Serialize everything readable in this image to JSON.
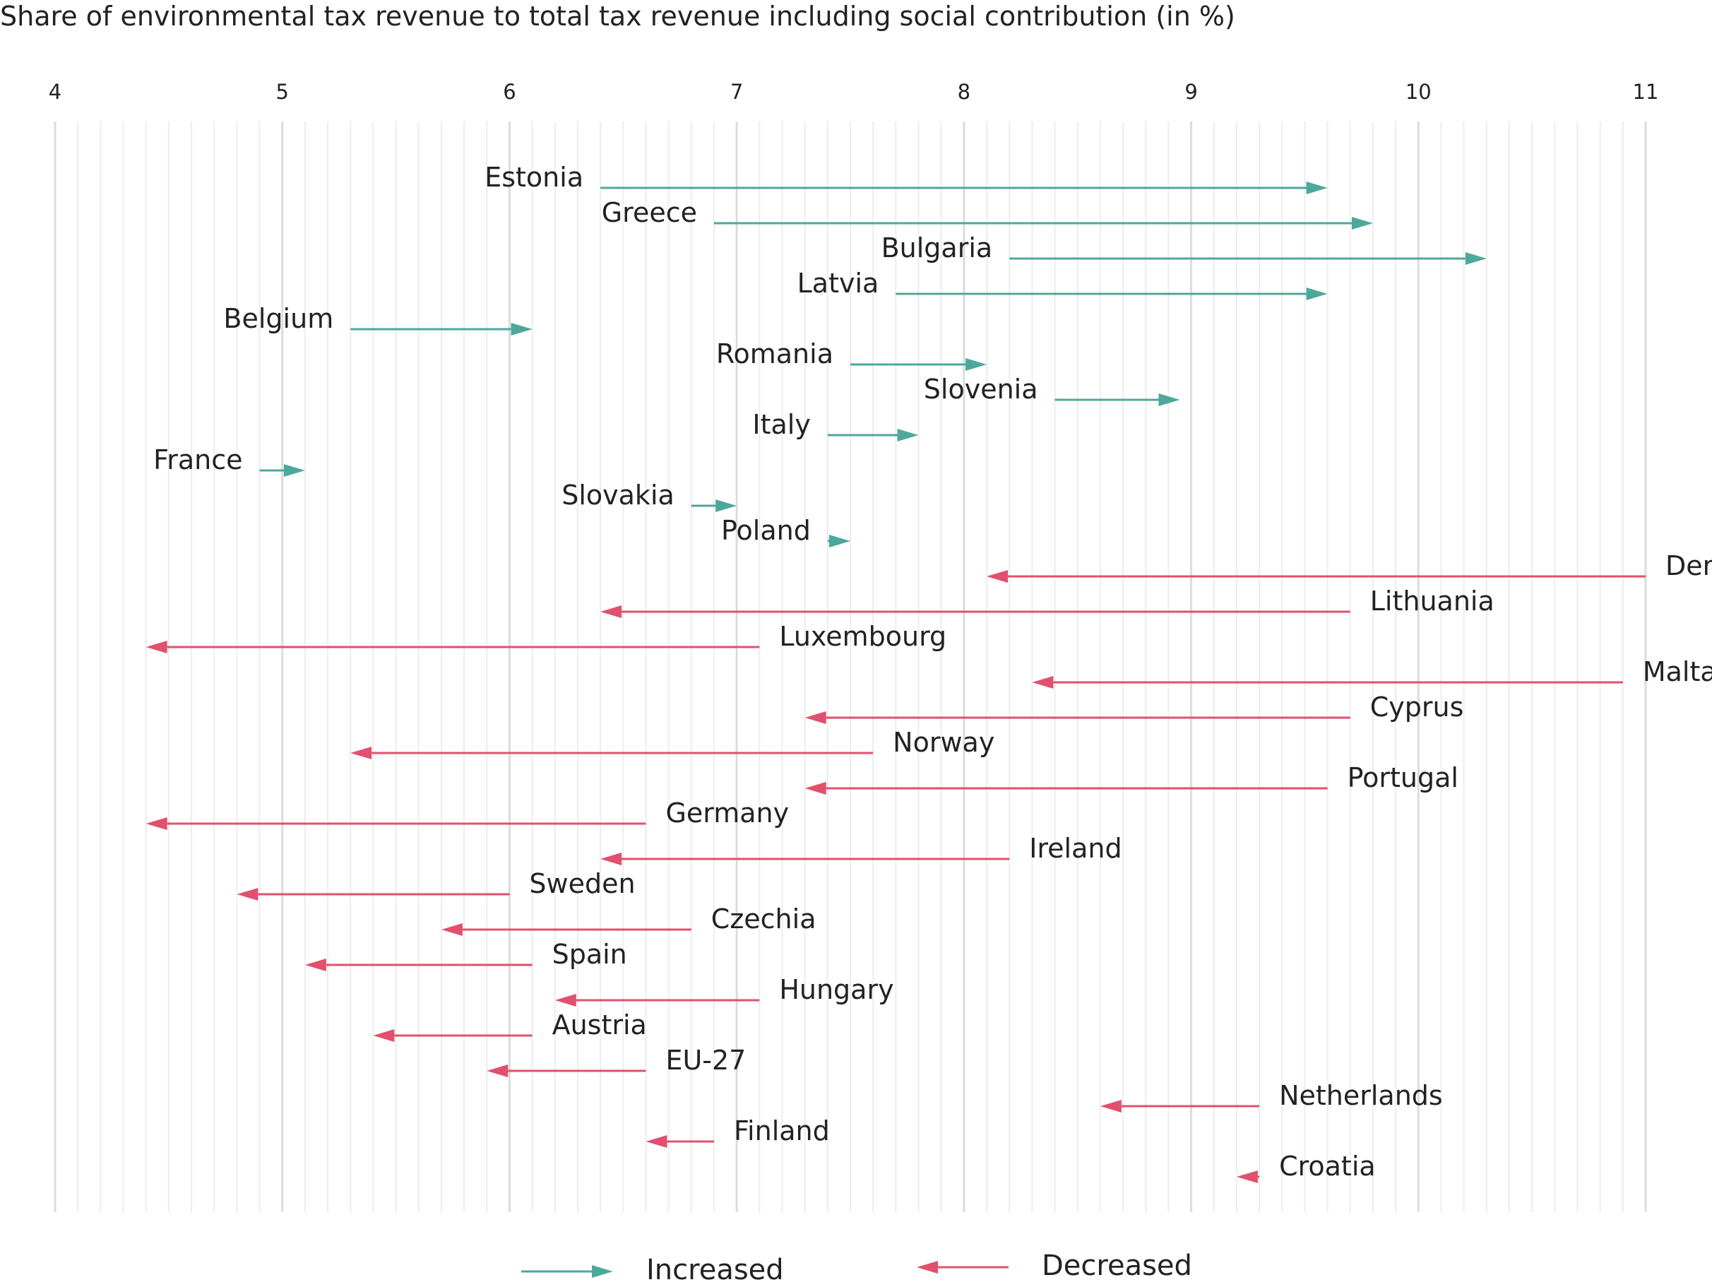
{
  "chart_data": {
    "type": "arrow",
    "title": "Share of environmental tax revenue to total tax revenue including social contribution (in %)",
    "xlim": [
      4,
      11
    ],
    "xticks": [
      "4",
      "5",
      "6",
      "7",
      "8",
      "9",
      "10",
      "11"
    ],
    "minor_grid_step": 0.1,
    "grid": true,
    "legend_position": "bottom",
    "colors": {
      "increased": "#4da89c",
      "decreased": "#e1506e",
      "major_grid": "#dcdcdc",
      "minor_grid": "#ededed"
    },
    "legend": [
      {
        "key": "increased",
        "label": "Increased"
      },
      {
        "key": "decreased",
        "label": "Decreased"
      }
    ],
    "rows": [
      {
        "country": "Estonia",
        "start": 6.4,
        "end": 9.6,
        "status": "increased",
        "label_side": "left"
      },
      {
        "country": "Greece",
        "start": 6.9,
        "end": 9.8,
        "status": "increased",
        "label_side": "left"
      },
      {
        "country": "Bulgaria",
        "start": 8.2,
        "end": 10.3,
        "status": "increased",
        "label_side": "left"
      },
      {
        "country": "Latvia",
        "start": 7.7,
        "end": 9.6,
        "status": "increased",
        "label_side": "left"
      },
      {
        "country": "Belgium",
        "start": 5.3,
        "end": 6.1,
        "status": "increased",
        "label_side": "left"
      },
      {
        "country": "Romania",
        "start": 7.5,
        "end": 8.1,
        "status": "increased",
        "label_side": "left"
      },
      {
        "country": "Slovenia",
        "start": 8.4,
        "end": 8.95,
        "status": "increased",
        "label_side": "left"
      },
      {
        "country": "Italy",
        "start": 7.4,
        "end": 7.8,
        "status": "increased",
        "label_side": "left"
      },
      {
        "country": "France",
        "start": 4.9,
        "end": 5.1,
        "status": "increased",
        "label_side": "left"
      },
      {
        "country": "Slovakia",
        "start": 6.8,
        "end": 7.0,
        "status": "increased",
        "label_side": "left"
      },
      {
        "country": "Poland",
        "start": 7.4,
        "end": 7.5,
        "status": "increased",
        "label_side": "left"
      },
      {
        "country": "Denmark",
        "start": 11.0,
        "end": 8.1,
        "status": "decreased",
        "label_side": "right"
      },
      {
        "country": "Lithuania",
        "start": 9.7,
        "end": 6.4,
        "status": "decreased",
        "label_side": "right"
      },
      {
        "country": "Luxembourg",
        "start": 7.1,
        "end": 4.4,
        "status": "decreased",
        "label_side": "right"
      },
      {
        "country": "Malta",
        "start": 10.9,
        "end": 8.3,
        "status": "decreased",
        "label_side": "right"
      },
      {
        "country": "Cyprus",
        "start": 9.7,
        "end": 7.3,
        "status": "decreased",
        "label_side": "right"
      },
      {
        "country": "Norway",
        "start": 7.6,
        "end": 5.3,
        "status": "decreased",
        "label_side": "right"
      },
      {
        "country": "Portugal",
        "start": 9.6,
        "end": 7.3,
        "status": "decreased",
        "label_side": "right"
      },
      {
        "country": "Germany",
        "start": 6.6,
        "end": 4.4,
        "status": "decreased",
        "label_side": "right"
      },
      {
        "country": "Ireland",
        "start": 8.2,
        "end": 6.4,
        "status": "decreased",
        "label_side": "right"
      },
      {
        "country": "Sweden",
        "start": 6.0,
        "end": 4.8,
        "status": "decreased",
        "label_side": "right"
      },
      {
        "country": "Czechia",
        "start": 6.8,
        "end": 5.7,
        "status": "decreased",
        "label_side": "right"
      },
      {
        "country": "Spain",
        "start": 6.1,
        "end": 5.1,
        "status": "decreased",
        "label_side": "right"
      },
      {
        "country": "Hungary",
        "start": 7.1,
        "end": 6.2,
        "status": "decreased",
        "label_side": "right"
      },
      {
        "country": "Austria",
        "start": 6.1,
        "end": 5.4,
        "status": "decreased",
        "label_side": "right"
      },
      {
        "country": "EU-27",
        "start": 6.6,
        "end": 5.9,
        "status": "decreased",
        "label_side": "right"
      },
      {
        "country": "Netherlands",
        "start": 9.3,
        "end": 8.6,
        "status": "decreased",
        "label_side": "right"
      },
      {
        "country": "Finland",
        "start": 6.9,
        "end": 6.6,
        "status": "decreased",
        "label_side": "right"
      },
      {
        "country": "Croatia",
        "start": 9.3,
        "end": 9.2,
        "status": "decreased",
        "label_side": "right"
      }
    ]
  }
}
